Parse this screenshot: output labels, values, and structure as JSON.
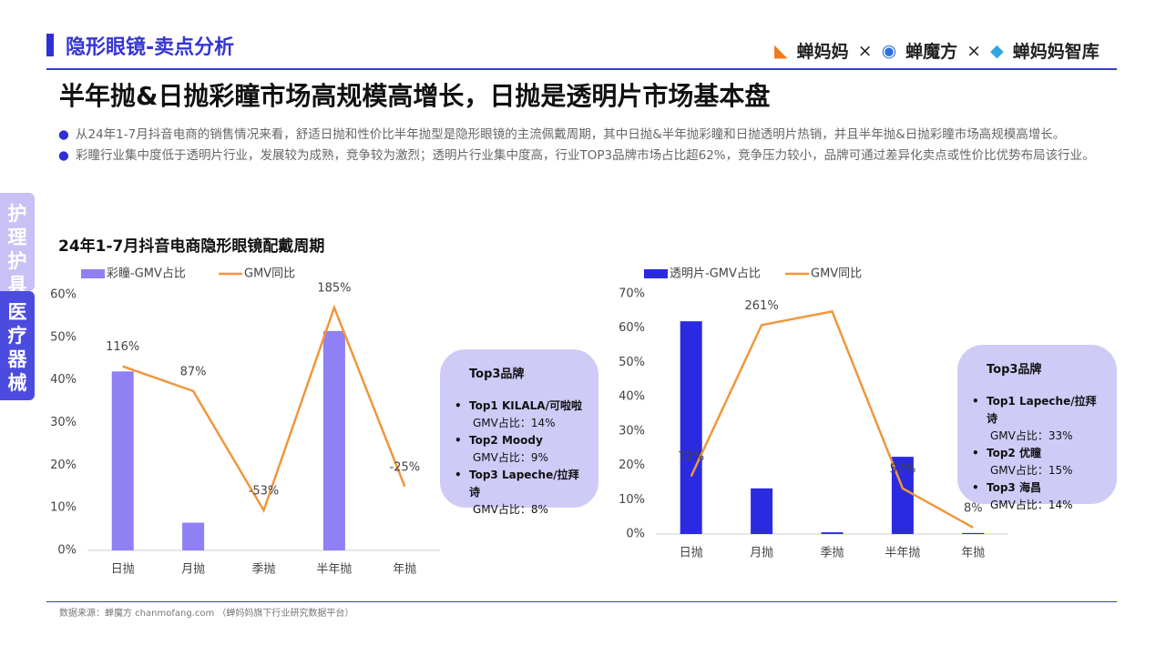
{
  "header": {
    "section": "隐形眼镜-卖点分析",
    "logos": [
      "蝉妈妈",
      "×",
      "蝉魔方",
      "×",
      "蝉妈妈智库"
    ]
  },
  "title": "半年抛&日抛彩瞳市场高规模高增长，日抛是透明片市场基本盘",
  "bullets": [
    "从24年1-7月抖音电商的销售情况来看，舒适日抛和性价比半年抛型是隐形眼镜的主流佩戴周期，其中日抛&半年抛彩瞳和日抛透明片热销，并且半年抛&日抛彩瞳市场高规模高增长。",
    "彩瞳行业集中度低于透明片行业，发展较为成熟，竞争较为激烈；透明片行业集中度高，行业TOP3品牌市场占比超62%，竞争压力较小，品牌可通过差异化卖点或性价比优势布局该行业。"
  ],
  "side_tabs": [
    "护理护具",
    "医疗器械"
  ],
  "chart_section_title": "24年1-7月抖音电商隐形眼镜配戴周期",
  "chart_data": [
    {
      "type": "bar",
      "categories": [
        "日抛",
        "月抛",
        "季抛",
        "半年抛",
        "年抛"
      ],
      "series": [
        {
          "name": "彩瞳-GMV占比",
          "type": "bar",
          "color": "#8f80f4",
          "values": [
            42,
            6.5,
            0,
            51.5,
            0
          ]
        },
        {
          "name": "GMV同比",
          "type": "line",
          "axis": "y2",
          "color": "#f0963c",
          "values": [
            116,
            87,
            -53,
            185,
            -25
          ],
          "value_labels": [
            "116%",
            "87%",
            "-53%",
            "185%",
            "-25%"
          ]
        }
      ],
      "ylim": [
        0,
        60
      ],
      "yticks": [
        {
          "value": 0,
          "label": "0%"
        },
        {
          "value": 10,
          "label": "10%"
        },
        {
          "value": 20,
          "label": "20%"
        },
        {
          "value": 30,
          "label": "30%"
        },
        {
          "value": 40,
          "label": "40%"
        },
        {
          "value": 50,
          "label": "50%"
        },
        {
          "value": 60,
          "label": "60%"
        }
      ],
      "y2lim": [
        -100,
        200
      ]
    },
    {
      "type": "bar",
      "categories": [
        "日抛",
        "月抛",
        "季抛",
        "半年抛",
        "年抛"
      ],
      "series": [
        {
          "name": "透明片-GMV占比",
          "type": "bar",
          "color": "#2a2ae0",
          "values": [
            62,
            13.3,
            0.5,
            22.5,
            0.3
          ]
        },
        {
          "name": "GMV同比",
          "type": "line",
          "axis": "y2",
          "color": "#f0963c",
          "values": [
            72,
            261,
            278,
            57,
            8
          ],
          "value_labels": [
            "72%",
            "261%",
            null,
            "57%",
            "8%"
          ]
        }
      ],
      "ylim": [
        0,
        70
      ],
      "yticks": [
        {
          "value": 0,
          "label": "0%"
        },
        {
          "value": 10,
          "label": "10%"
        },
        {
          "value": 20,
          "label": "20%"
        },
        {
          "value": 30,
          "label": "30%"
        },
        {
          "value": 40,
          "label": "40%"
        },
        {
          "value": 50,
          "label": "50%"
        },
        {
          "value": 60,
          "label": "60%"
        },
        {
          "value": 70,
          "label": "70%"
        }
      ],
      "y2lim": [
        0,
        300
      ]
    }
  ],
  "callouts": [
    {
      "title": "Top3品牌",
      "items": [
        [
          "Top1  KILALA/可啦啦",
          "GMV占比：14%"
        ],
        [
          "Top2  Moody",
          "GMV占比：9%"
        ],
        [
          "Top3  Lapeche/拉拜诗",
          "GMV占比：8%"
        ]
      ]
    },
    {
      "title": "Top3品牌",
      "items": [
        [
          "Top1  Lapeche/拉拜诗",
          "GMV占比：33%"
        ],
        [
          "Top2 优瞳",
          "GMV占比：15%"
        ],
        [
          "Top3  海昌",
          "GMV占比：14%"
        ]
      ]
    }
  ],
  "footer": "数据来源：蝉魔方 chanmofang.com （蝉妈妈旗下行业研究数据平台）"
}
